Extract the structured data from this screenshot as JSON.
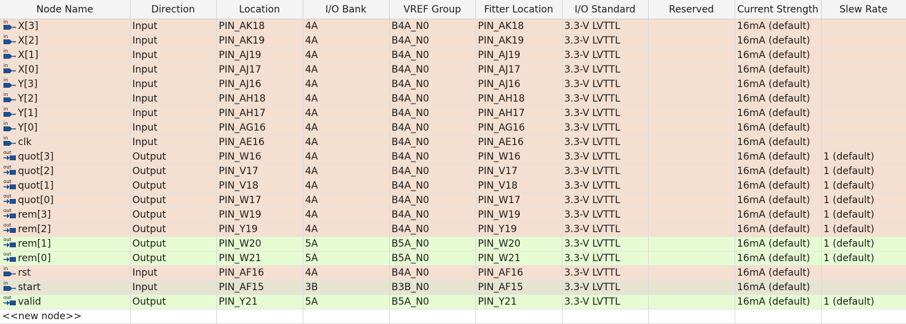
{
  "columns": [
    "Node Name",
    "Direction",
    "Location",
    "I/O Bank",
    "VREF Group",
    "Fitter Location",
    "I/O Standard",
    "Reserved",
    "Current Strength",
    "Slew Rate"
  ],
  "colors": {
    "bank4A": "#f5dfd0",
    "bank5A": "#e7fbd3",
    "bank3B": "#e6e3d1"
  },
  "rows": [
    {
      "pin_type": "in",
      "cells": [
        "X[3]",
        "Input",
        "PIN_AK18",
        "4A",
        "B4A_N0",
        "PIN_AK18",
        "3.3-V LVTTL",
        "",
        "16mA (default)",
        ""
      ],
      "color": "red"
    },
    {
      "pin_type": "in",
      "cells": [
        "X[2]",
        "Input",
        "PIN_AK19",
        "4A",
        "B4A_N0",
        "PIN_AK19",
        "3.3-V LVTTL",
        "",
        "16mA (default)",
        ""
      ],
      "color": "red"
    },
    {
      "pin_type": "in",
      "cells": [
        "X[1]",
        "Input",
        "PIN_AJ19",
        "4A",
        "B4A_N0",
        "PIN_AJ19",
        "3.3-V LVTTL",
        "",
        "16mA (default)",
        ""
      ],
      "color": "red"
    },
    {
      "pin_type": "in",
      "cells": [
        "X[0]",
        "Input",
        "PIN_AJ17",
        "4A",
        "B4A_N0",
        "PIN_AJ17",
        "3.3-V LVTTL",
        "",
        "16mA (default)",
        ""
      ],
      "color": "red"
    },
    {
      "pin_type": "in",
      "cells": [
        "Y[3]",
        "Input",
        "PIN_AJ16",
        "4A",
        "B4A_N0",
        "PIN_AJ16",
        "3.3-V LVTTL",
        "",
        "16mA (default)",
        ""
      ],
      "color": "red"
    },
    {
      "pin_type": "in",
      "cells": [
        "Y[2]",
        "Input",
        "PIN_AH18",
        "4A",
        "B4A_N0",
        "PIN_AH18",
        "3.3-V LVTTL",
        "",
        "16mA (default)",
        ""
      ],
      "color": "red"
    },
    {
      "pin_type": "in",
      "cells": [
        "Y[1]",
        "Input",
        "PIN_AH17",
        "4A",
        "B4A_N0",
        "PIN_AH17",
        "3.3-V LVTTL",
        "",
        "16mA (default)",
        ""
      ],
      "color": "red"
    },
    {
      "pin_type": "in",
      "cells": [
        "Y[0]",
        "Input",
        "PIN_AG16",
        "4A",
        "B4A_N0",
        "PIN_AG16",
        "3.3-V LVTTL",
        "",
        "16mA (default)",
        ""
      ],
      "color": "red"
    },
    {
      "pin_type": "in",
      "cells": [
        "clk",
        "Input",
        "PIN_AE16",
        "4A",
        "B4A_N0",
        "PIN_AE16",
        "3.3-V LVTTL",
        "",
        "16mA (default)",
        ""
      ],
      "color": "red"
    },
    {
      "pin_type": "out",
      "cells": [
        "quot[3]",
        "Output",
        "PIN_W16",
        "4A",
        "B4A_N0",
        "PIN_W16",
        "3.3-V LVTTL",
        "",
        "16mA (default)",
        "1 (default)"
      ],
      "color": "red"
    },
    {
      "pin_type": "out",
      "cells": [
        "quot[2]",
        "Output",
        "PIN_V17",
        "4A",
        "B4A_N0",
        "PIN_V17",
        "3.3-V LVTTL",
        "",
        "16mA (default)",
        "1 (default)"
      ],
      "color": "red"
    },
    {
      "pin_type": "out",
      "cells": [
        "quot[1]",
        "Output",
        "PIN_V18",
        "4A",
        "B4A_N0",
        "PIN_V18",
        "3.3-V LVTTL",
        "",
        "16mA (default)",
        "1 (default)"
      ],
      "color": "red"
    },
    {
      "pin_type": "out",
      "cells": [
        "quot[0]",
        "Output",
        "PIN_W17",
        "4A",
        "B4A_N0",
        "PIN_W17",
        "3.3-V LVTTL",
        "",
        "16mA (default)",
        "1 (default)"
      ],
      "color": "red"
    },
    {
      "pin_type": "out",
      "cells": [
        "rem[3]",
        "Output",
        "PIN_W19",
        "4A",
        "B4A_N0",
        "PIN_W19",
        "3.3-V LVTTL",
        "",
        "16mA (default)",
        "1 (default)"
      ],
      "color": "red"
    },
    {
      "pin_type": "out",
      "cells": [
        "rem[2]",
        "Output",
        "PIN_Y19",
        "4A",
        "B4A_N0",
        "PIN_Y19",
        "3.3-V LVTTL",
        "",
        "16mA (default)",
        "1 (default)"
      ],
      "color": "red"
    },
    {
      "pin_type": "out",
      "cells": [
        "rem[1]",
        "Output",
        "PIN_W20",
        "5A",
        "B5A_N0",
        "PIN_W20",
        "3.3-V LVTTL",
        "",
        "16mA (default)",
        "1 (default)"
      ],
      "color": "green"
    },
    {
      "pin_type": "out",
      "cells": [
        "rem[0]",
        "Output",
        "PIN_W21",
        "5A",
        "B5A_N0",
        "PIN_W21",
        "3.3-V LVTTL",
        "",
        "16mA (default)",
        "1 (default)"
      ],
      "color": "green"
    },
    {
      "pin_type": "in",
      "cells": [
        "rst",
        "Input",
        "PIN_AF16",
        "4A",
        "B4A_N0",
        "PIN_AF16",
        "3.3-V LVTTL",
        "",
        "16mA (default)",
        ""
      ],
      "color": "red"
    },
    {
      "pin_type": "in",
      "cells": [
        "start",
        "Input",
        "PIN_AF15",
        "3B",
        "B3B_N0",
        "PIN_AF15",
        "3.3-V LVTTL",
        "",
        "16mA (default)",
        ""
      ],
      "color": "tan"
    },
    {
      "pin_type": "out",
      "cells": [
        "valid",
        "Output",
        "PIN_Y21",
        "5A",
        "B5A_N0",
        "PIN_Y21",
        "3.3-V LVTTL",
        "",
        "16mA (default)",
        "1 (default)"
      ],
      "color": "green"
    }
  ],
  "new_node_label": "<<new node>>"
}
